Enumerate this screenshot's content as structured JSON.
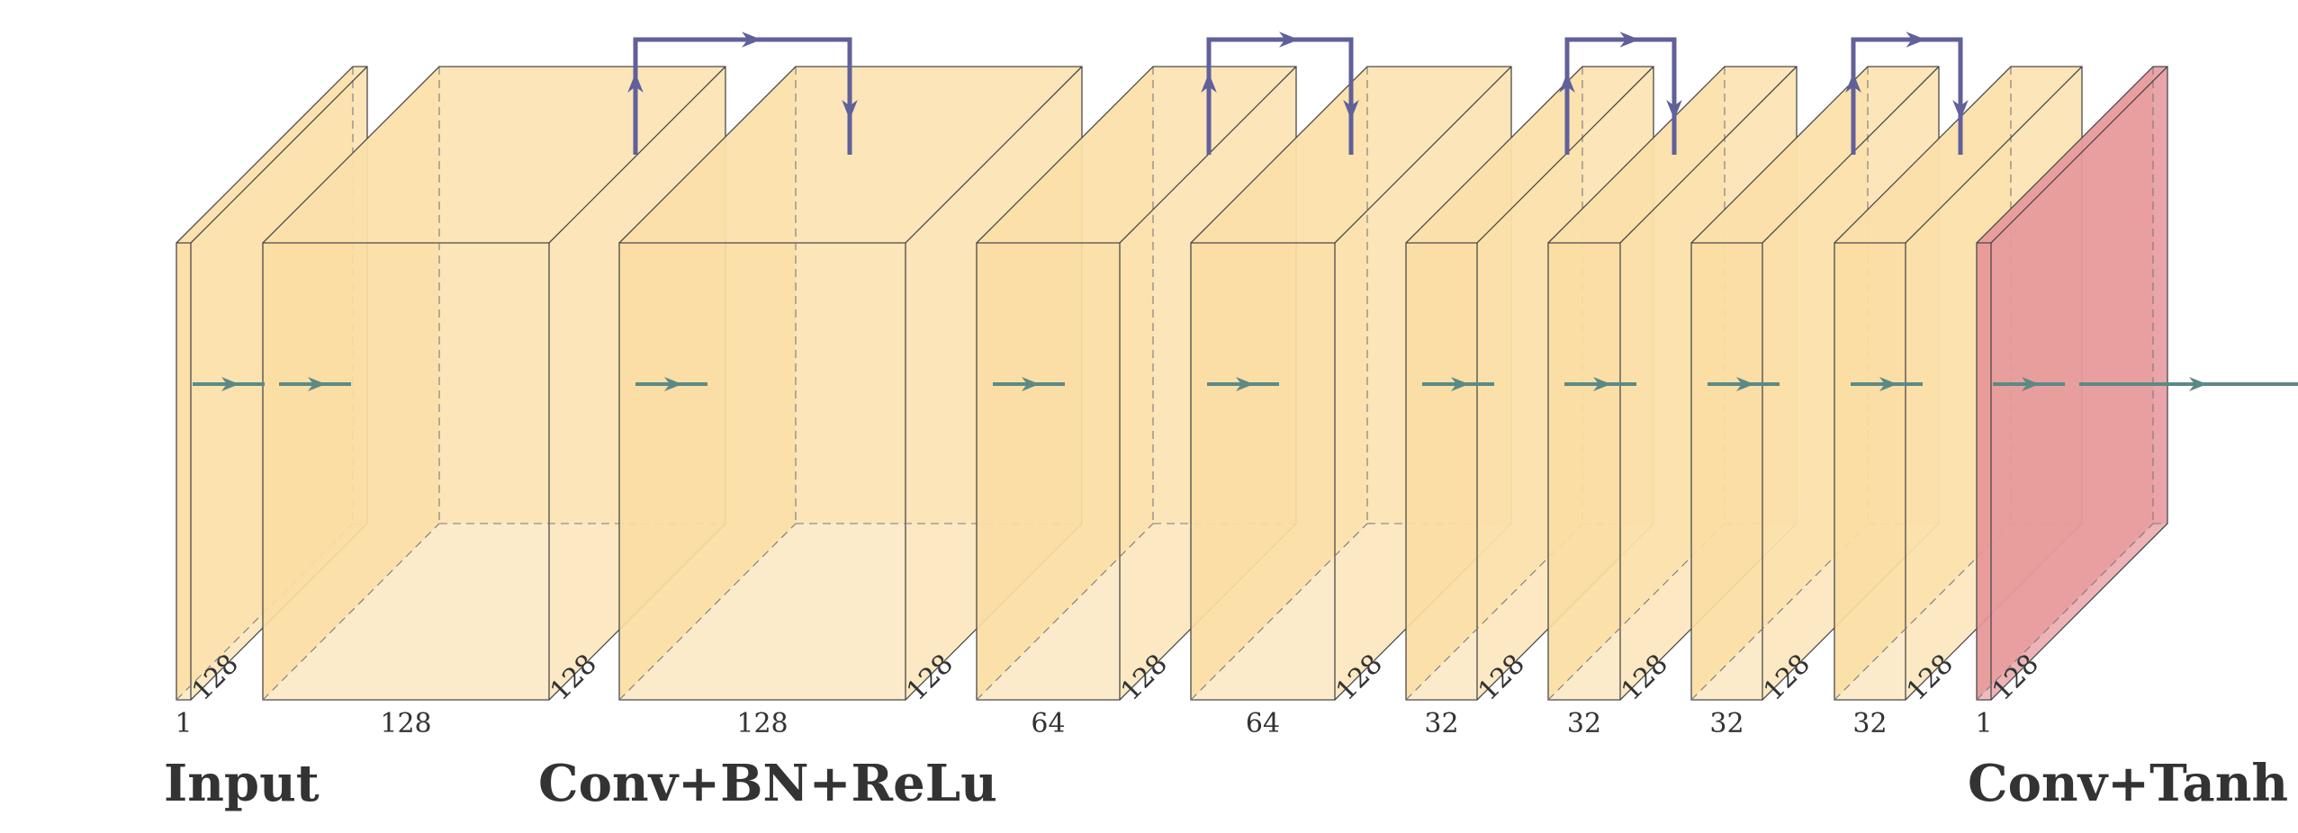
{
  "diagram": {
    "colors": {
      "block_fill": "#fbe3b4",
      "block_dark": "#f8cc72",
      "output_fill": "#e8a0a5",
      "output_dark": "#e07a68",
      "edge": "#4a4a4a",
      "flow_arrow": "#5b8a86",
      "skip_arrow": "#60609a"
    },
    "blocks": [
      {
        "kind": "input",
        "width_label": "1",
        "depth_label": "128"
      },
      {
        "kind": "conv",
        "width_label": "128",
        "depth_label": "128"
      },
      {
        "kind": "conv",
        "width_label": "128",
        "depth_label": "128"
      },
      {
        "kind": "conv",
        "width_label": "64",
        "depth_label": "128"
      },
      {
        "kind": "conv",
        "width_label": "64",
        "depth_label": "128"
      },
      {
        "kind": "conv",
        "width_label": "32",
        "depth_label": "128"
      },
      {
        "kind": "conv",
        "width_label": "32",
        "depth_label": "128"
      },
      {
        "kind": "conv",
        "width_label": "32",
        "depth_label": "128"
      },
      {
        "kind": "conv",
        "width_label": "32",
        "depth_label": "128"
      },
      {
        "kind": "output",
        "width_label": "1",
        "depth_label": "128"
      }
    ],
    "captions": {
      "input": "Input",
      "conv": "Conv+BN+ReLu",
      "output": "Conv+Tanh"
    }
  }
}
